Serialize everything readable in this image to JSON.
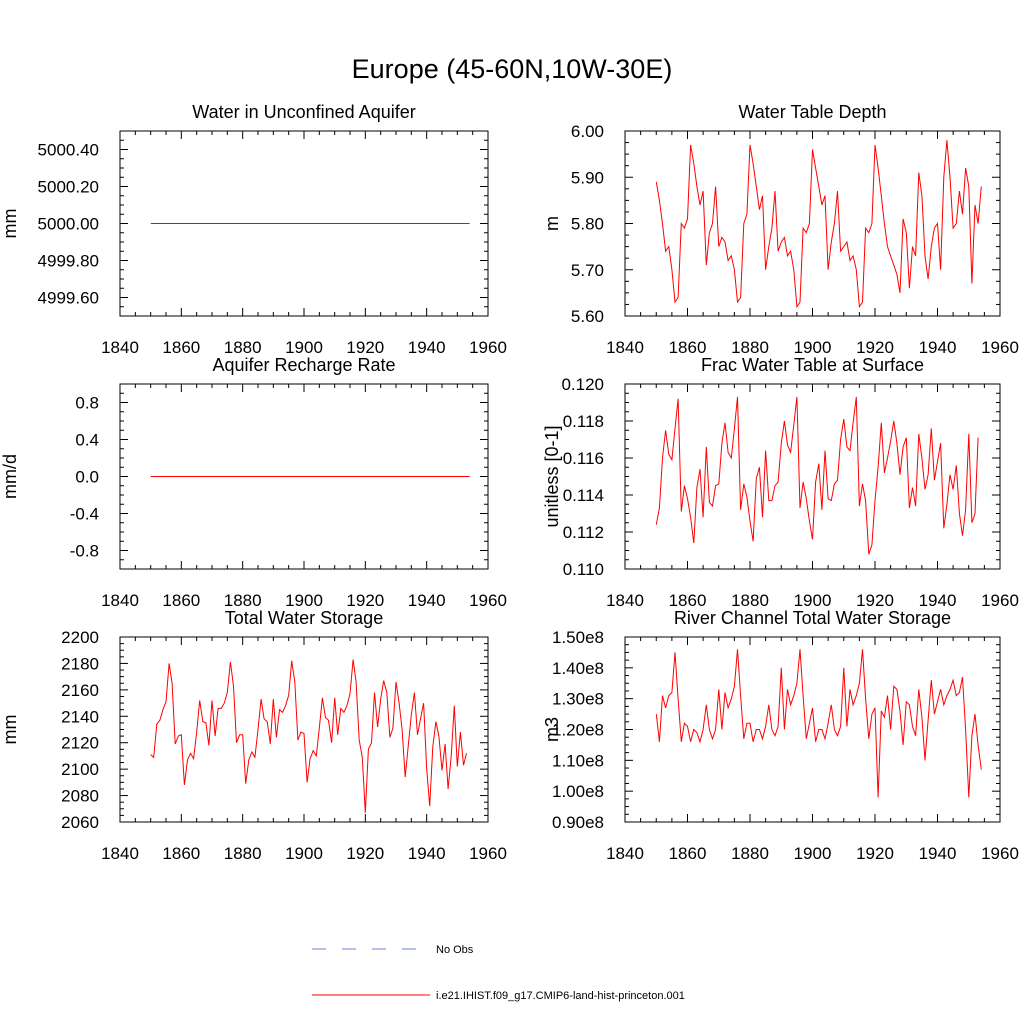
{
  "title": "Europe (45-60N,10W-30E)",
  "colors": {
    "model": "#ff0000",
    "obs": "#6b7fd6",
    "axis": "#000000"
  },
  "legend": {
    "obs_label": "No Obs",
    "model_label": "i.e21.IHIST.f09_g17.CMIP6-land-hist-princeton.001"
  },
  "chart_data": [
    {
      "type": "line",
      "title": "Water in Unconfined Aquifer",
      "ylabel": "mm",
      "xlim": [
        1840,
        1960
      ],
      "ylim": [
        4999.5,
        5000.5
      ],
      "xticks": [
        "1840",
        "1860",
        "1880",
        "1900",
        "1920",
        "1940",
        "1960"
      ],
      "yticks": [
        {
          "v": 4999.6,
          "label": "4999.60"
        },
        {
          "v": 4999.8,
          "label": "4999.80"
        },
        {
          "v": 5000.0,
          "label": "5000.00"
        },
        {
          "v": 5000.2,
          "label": "5000.20"
        },
        {
          "v": 5000.4,
          "label": "5000.40"
        }
      ],
      "x_start": 1850,
      "values": [
        5000,
        5000,
        5000,
        5000,
        5000,
        5000,
        5000,
        5000,
        5000,
        5000,
        5000,
        5000,
        5000,
        5000,
        5000,
        5000,
        5000,
        5000,
        5000,
        5000,
        5000,
        5000,
        5000,
        5000,
        5000,
        5000,
        5000,
        5000,
        5000,
        5000,
        5000,
        5000,
        5000,
        5000,
        5000,
        5000,
        5000,
        5000,
        5000,
        5000,
        5000,
        5000,
        5000,
        5000,
        5000,
        5000,
        5000,
        5000,
        5000,
        5000,
        5000,
        5000,
        5000,
        5000,
        5000,
        5000,
        5000,
        5000,
        5000,
        5000,
        5000,
        5000,
        5000,
        5000,
        5000,
        5000,
        5000,
        5000,
        5000,
        5000,
        5000,
        5000,
        5000,
        5000,
        5000,
        5000,
        5000,
        5000,
        5000,
        5000,
        5000,
        5000,
        5000,
        5000,
        5000,
        5000,
        5000,
        5000,
        5000,
        5000,
        5000,
        5000,
        5000,
        5000,
        5000,
        5000,
        5000,
        5000,
        5000,
        5000,
        5000,
        5000,
        5000,
        5000,
        5000
      ]
    },
    {
      "type": "line",
      "title": "Water Table Depth",
      "ylabel": "m",
      "xlim": [
        1840,
        1960
      ],
      "ylim": [
        5.6,
        6.0
      ],
      "xticks": [
        "1840",
        "1860",
        "1880",
        "1900",
        "1920",
        "1940",
        "1960"
      ],
      "yticks": [
        {
          "v": 5.6,
          "label": "5.60"
        },
        {
          "v": 5.7,
          "label": "5.70"
        },
        {
          "v": 5.8,
          "label": "5.80"
        },
        {
          "v": 5.9,
          "label": "5.90"
        },
        {
          "v": 6.0,
          "label": "6.00"
        }
      ],
      "x_start": 1850,
      "values": [
        5.89,
        5.85,
        5.8,
        5.74,
        5.75,
        5.7,
        5.63,
        5.64,
        5.8,
        5.79,
        5.81,
        5.97,
        5.93,
        5.88,
        5.84,
        5.87,
        5.71,
        5.78,
        5.8,
        5.88,
        5.75,
        5.77,
        5.76,
        5.72,
        5.73,
        5.7,
        5.63,
        5.64,
        5.8,
        5.82,
        5.97,
        5.93,
        5.88,
        5.83,
        5.86,
        5.7,
        5.75,
        5.79,
        5.87,
        5.74,
        5.76,
        5.77,
        5.73,
        5.74,
        5.7,
        5.62,
        5.63,
        5.79,
        5.78,
        5.8,
        5.96,
        5.92,
        5.88,
        5.84,
        5.86,
        5.7,
        5.76,
        5.8,
        5.87,
        5.74,
        5.75,
        5.76,
        5.72,
        5.73,
        5.7,
        5.62,
        5.63,
        5.79,
        5.78,
        5.8,
        5.97,
        5.92,
        5.86,
        5.8,
        5.75,
        5.73,
        5.71,
        5.69,
        5.65,
        5.81,
        5.78,
        5.66,
        5.75,
        5.73,
        5.91,
        5.86,
        5.73,
        5.68,
        5.75,
        5.79,
        5.8,
        5.7,
        5.9,
        5.98,
        5.9,
        5.79,
        5.8,
        5.87,
        5.82,
        5.92,
        5.88,
        5.67,
        5.84,
        5.8,
        5.88
      ]
    },
    {
      "type": "line",
      "title": "Aquifer Recharge Rate",
      "ylabel": "mm/d",
      "xlim": [
        1840,
        1960
      ],
      "ylim": [
        -1.0,
        1.0
      ],
      "xticks": [
        "1840",
        "1860",
        "1880",
        "1900",
        "1920",
        "1940",
        "1960"
      ],
      "yticks": [
        {
          "v": -0.8,
          "label": "-0.8"
        },
        {
          "v": -0.4,
          "label": "-0.4"
        },
        {
          "v": 0.0,
          "label": "0.0"
        },
        {
          "v": 0.4,
          "label": "0.4"
        },
        {
          "v": 0.8,
          "label": "0.8"
        }
      ],
      "x_start": 1850,
      "values": [
        0,
        0,
        0,
        0,
        0,
        0,
        0,
        0,
        0,
        0,
        0,
        0,
        0,
        0,
        0,
        0,
        0,
        0,
        0,
        0,
        0,
        0,
        0,
        0,
        0,
        0,
        0,
        0,
        0,
        0,
        0,
        0,
        0,
        0,
        0,
        0,
        0,
        0,
        0,
        0,
        0,
        0,
        0,
        0,
        0,
        0,
        0,
        0,
        0,
        0,
        0,
        0,
        0,
        0,
        0,
        0,
        0,
        0,
        0,
        0,
        0,
        0,
        0,
        0,
        0,
        0,
        0,
        0,
        0,
        0,
        0,
        0,
        0,
        0,
        0,
        0,
        0,
        0,
        0,
        0,
        0,
        0,
        0,
        0,
        0,
        0,
        0,
        0,
        0,
        0,
        0,
        0,
        0,
        0,
        0,
        0,
        0,
        0,
        0,
        0,
        0,
        0,
        0,
        0,
        0
      ]
    },
    {
      "type": "line",
      "title": "Frac Water Table at Surface",
      "ylabel": "unitless [0-1]",
      "xlim": [
        1840,
        1960
      ],
      "ylim": [
        0.11,
        0.12
      ],
      "xticks": [
        "1840",
        "1860",
        "1880",
        "1900",
        "1920",
        "1940",
        "1960"
      ],
      "yticks": [
        {
          "v": 0.11,
          "label": "0.110"
        },
        {
          "v": 0.112,
          "label": "0.112"
        },
        {
          "v": 0.114,
          "label": "0.114"
        },
        {
          "v": 0.116,
          "label": "0.116"
        },
        {
          "v": 0.118,
          "label": "0.118"
        },
        {
          "v": 0.12,
          "label": "0.120"
        }
      ],
      "x_start": 1850,
      "values": [
        0.1124,
        0.1133,
        0.116,
        0.1175,
        0.1162,
        0.1159,
        0.1176,
        0.1192,
        0.1131,
        0.1145,
        0.1138,
        0.1128,
        0.1114,
        0.1144,
        0.1154,
        0.1128,
        0.1166,
        0.1136,
        0.1134,
        0.1145,
        0.1146,
        0.1168,
        0.1179,
        0.1163,
        0.116,
        0.1176,
        0.1193,
        0.1132,
        0.1146,
        0.1139,
        0.1126,
        0.1115,
        0.1149,
        0.1155,
        0.1128,
        0.1164,
        0.1137,
        0.1137,
        0.1145,
        0.1147,
        0.1168,
        0.118,
        0.1167,
        0.1163,
        0.1178,
        0.1193,
        0.1133,
        0.1147,
        0.1138,
        0.1126,
        0.1116,
        0.1147,
        0.1157,
        0.1132,
        0.1164,
        0.1138,
        0.1137,
        0.1146,
        0.1148,
        0.117,
        0.1181,
        0.1166,
        0.1164,
        0.1179,
        0.1193,
        0.1134,
        0.1146,
        0.1137,
        0.1108,
        0.1113,
        0.1137,
        0.1155,
        0.1179,
        0.1152,
        0.116,
        0.1169,
        0.118,
        0.1168,
        0.1151,
        0.1166,
        0.1171,
        0.1133,
        0.1144,
        0.1134,
        0.1173,
        0.116,
        0.1143,
        0.1151,
        0.1176,
        0.1148,
        0.1158,
        0.1168,
        0.1122,
        0.1135,
        0.1151,
        0.1143,
        0.1156,
        0.113,
        0.1118,
        0.1132,
        0.1173,
        0.1125,
        0.113,
        0.1171
      ]
    },
    {
      "type": "line",
      "title": "Total Water Storage",
      "ylabel": "mm",
      "xlim": [
        1840,
        1960
      ],
      "ylim": [
        2060,
        2200
      ],
      "xticks": [
        "1840",
        "1860",
        "1880",
        "1900",
        "1920",
        "1940",
        "1960"
      ],
      "yticks": [
        {
          "v": 2060,
          "label": "2060"
        },
        {
          "v": 2080,
          "label": "2080"
        },
        {
          "v": 2100,
          "label": "2100"
        },
        {
          "v": 2120,
          "label": "2120"
        },
        {
          "v": 2140,
          "label": "2140"
        },
        {
          "v": 2160,
          "label": "2160"
        },
        {
          "v": 2180,
          "label": "2180"
        },
        {
          "v": 2200,
          "label": "2200"
        }
      ],
      "x_start": 1850,
      "values": [
        2111,
        2109,
        2134,
        2137,
        2145,
        2151,
        2180,
        2165,
        2119,
        2125,
        2126,
        2088,
        2107,
        2112,
        2108,
        2128,
        2152,
        2136,
        2135,
        2118,
        2152,
        2125,
        2146,
        2146,
        2150,
        2158,
        2181,
        2163,
        2120,
        2126,
        2126,
        2089,
        2107,
        2113,
        2109,
        2130,
        2153,
        2138,
        2136,
        2119,
        2153,
        2124,
        2145,
        2143,
        2148,
        2156,
        2182,
        2166,
        2122,
        2128,
        2127,
        2090,
        2108,
        2114,
        2110,
        2131,
        2154,
        2139,
        2137,
        2120,
        2154,
        2126,
        2146,
        2143,
        2148,
        2157,
        2183,
        2166,
        2122,
        2109,
        2067,
        2115,
        2120,
        2158,
        2132,
        2153,
        2167,
        2158,
        2124,
        2131,
        2166,
        2150,
        2130,
        2094,
        2118,
        2141,
        2158,
        2126,
        2138,
        2150,
        2100,
        2072,
        2117,
        2136,
        2125,
        2099,
        2119,
        2085,
        2110,
        2148,
        2102,
        2128,
        2103,
        2112
      ]
    },
    {
      "type": "line",
      "title": "River Channel Total Water Storage",
      "ylabel": "m3",
      "xlim": [
        1840,
        1960
      ],
      "ylim": [
        90000000.0,
        150000000.0
      ],
      "xticks": [
        "1840",
        "1860",
        "1880",
        "1900",
        "1920",
        "1940",
        "1960"
      ],
      "yticks": [
        {
          "v": 90000000.0,
          "label": "0.90e8"
        },
        {
          "v": 100000000.0,
          "label": "1.00e8"
        },
        {
          "v": 110000000.0,
          "label": "1.10e8"
        },
        {
          "v": 120000000.0,
          "label": "1.20e8"
        },
        {
          "v": 130000000.0,
          "label": "1.30e8"
        },
        {
          "v": 140000000.0,
          "label": "1.40e8"
        },
        {
          "v": 150000000.0,
          "label": "1.50e8"
        }
      ],
      "x_start": 1850,
      "values": [
        125000000.0,
        116000000.0,
        131000000.0,
        127000000.0,
        131000000.0,
        132000000.0,
        145000000.0,
        130000000.0,
        116000000.0,
        122000000.0,
        121000000.0,
        116000000.0,
        120000000.0,
        119000000.0,
        116000000.0,
        120000000.0,
        128000000.0,
        120000000.0,
        117000000.0,
        120000000.0,
        133000000.0,
        120000000.0,
        132000000.0,
        127000000.0,
        130000000.0,
        134000000.0,
        146000000.0,
        131000000.0,
        117000000.0,
        122000000.0,
        122000000.0,
        116000000.0,
        120000000.0,
        120000000.0,
        117000000.0,
        121000000.0,
        128000000.0,
        120000000.0,
        118000000.0,
        121000000.0,
        140000000.0,
        120000000.0,
        133000000.0,
        128000000.0,
        131000000.0,
        135000000.0,
        146000000.0,
        131000000.0,
        117000000.0,
        122000000.0,
        127000000.0,
        116000000.0,
        120000000.0,
        120000000.0,
        117000000.0,
        122000000.0,
        128000000.0,
        120000000.0,
        118000000.0,
        121000000.0,
        140000000.0,
        121000000.0,
        133000000.0,
        128000000.0,
        131000000.0,
        135000000.0,
        146000000.0,
        130000000.0,
        117000000.0,
        125000000.0,
        127000000.0,
        98000000.0,
        126000000.0,
        124000000.0,
        131000000.0,
        120000000.0,
        134000000.0,
        133000000.0,
        126000000.0,
        115000000.0,
        129000000.0,
        128000000.0,
        121000000.0,
        118000000.0,
        133000000.0,
        124000000.0,
        110000000.0,
        123000000.0,
        136000000.0,
        125000000.0,
        129000000.0,
        133000000.0,
        128000000.0,
        131000000.0,
        133000000.0,
        136000000.0,
        131000000.0,
        132000000.0,
        137000000.0,
        120000000.0,
        98000000.0,
        118000000.0,
        125000000.0,
        115000000.0,
        107000000.0
      ]
    }
  ]
}
